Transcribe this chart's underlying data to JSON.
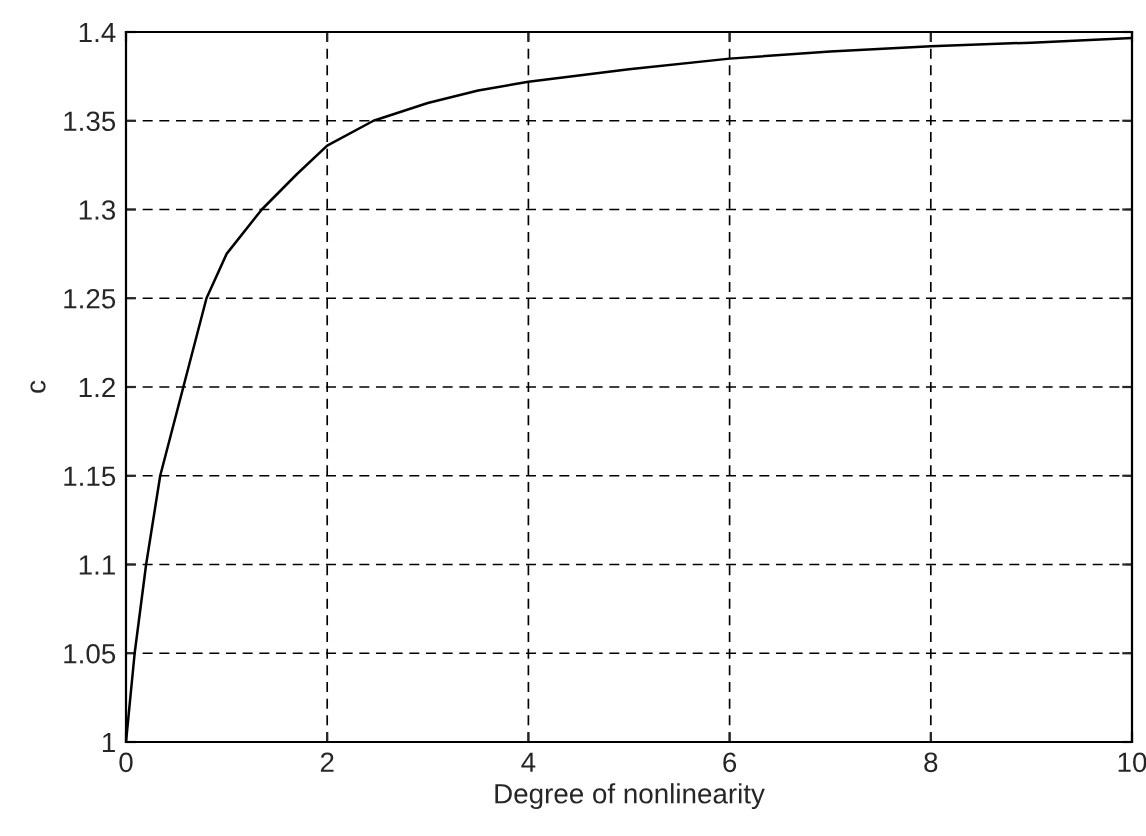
{
  "chart_data": {
    "type": "line",
    "xlabel": "Degree of nonlinearity",
    "ylabel": "c",
    "x": [
      0,
      0.086,
      0.2,
      0.34,
      0.57,
      0.8,
      1.0,
      1.35,
      1.7,
      2.0,
      2.46,
      3.0,
      3.5,
      4.0,
      5.0,
      6.0,
      7.0,
      8.0,
      9.0,
      10.0
    ],
    "series": [
      {
        "color": "#000000",
        "values": [
          1,
          1.05,
          1.1,
          1.15,
          1.2,
          1.25,
          1.275,
          1.3,
          1.32,
          1.336,
          1.35,
          1.36,
          1.367,
          1.372,
          1.379,
          1.385,
          1.389,
          1.392,
          1.394,
          1.3966
        ]
      }
    ],
    "xlim": [
      0,
      10
    ],
    "ylim": [
      1,
      1.4
    ],
    "xticks": [
      0,
      2,
      4,
      6,
      8,
      10
    ],
    "yticks": [
      1,
      1.05,
      1.1,
      1.15,
      1.2,
      1.25,
      1.3,
      1.35,
      1.4
    ],
    "grid": true,
    "line_style": "solid"
  }
}
